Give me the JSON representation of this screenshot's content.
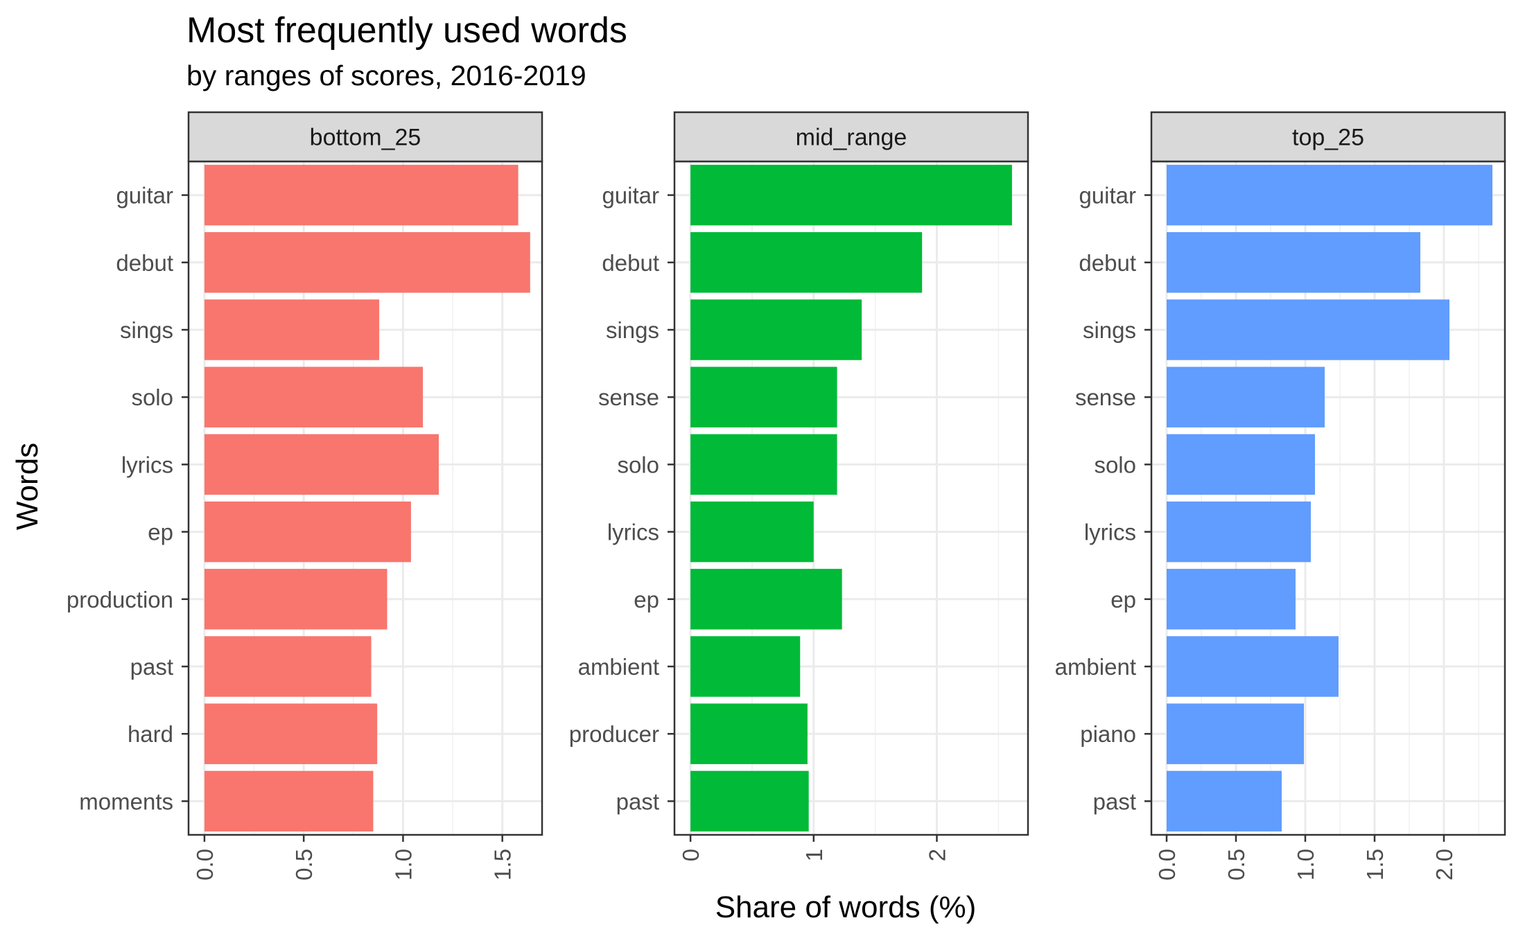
{
  "chart_data": {
    "type": "bar",
    "orientation": "horizontal",
    "title": "Most frequently used words",
    "subtitle": "by ranges of scores, 2016-2019",
    "xlabel": "Share of words (%)",
    "ylabel": "Words",
    "grid": true,
    "facets": [
      {
        "name": "bottom_25",
        "color": "#F8766D",
        "xlim": [
          -0.08,
          1.7
        ],
        "ticks": [
          0,
          0.5,
          1,
          1.5
        ],
        "tick_labels": [
          "0.0",
          "0.5",
          "1.0",
          "1.5"
        ],
        "categories": [
          "guitar",
          "debut",
          "sings",
          "solo",
          "lyrics",
          "ep",
          "production",
          "past",
          "hard",
          "moments"
        ],
        "values": [
          1.58,
          1.64,
          0.88,
          1.1,
          1.18,
          1.04,
          0.92,
          0.84,
          0.87,
          0.85
        ]
      },
      {
        "name": "mid_range",
        "color": "#00BA38",
        "xlim": [
          -0.13,
          2.74
        ],
        "ticks": [
          0,
          1,
          2
        ],
        "tick_labels": [
          "0",
          "1",
          "2"
        ],
        "categories": [
          "guitar",
          "debut",
          "sings",
          "sense",
          "solo",
          "lyrics",
          "ep",
          "ambient",
          "producer",
          "past"
        ],
        "values": [
          2.61,
          1.88,
          1.39,
          1.19,
          1.19,
          1.0,
          1.23,
          0.89,
          0.95,
          0.96
        ]
      },
      {
        "name": "top_25",
        "color": "#619CFF",
        "xlim": [
          -0.11,
          2.44
        ],
        "ticks": [
          0,
          0.5,
          1,
          1.5,
          2
        ],
        "tick_labels": [
          "0.0",
          "0.5",
          "1.0",
          "1.5",
          "2.0"
        ],
        "categories": [
          "guitar",
          "debut",
          "sings",
          "sense",
          "solo",
          "lyrics",
          "ep",
          "ambient",
          "piano",
          "past"
        ],
        "values": [
          2.35,
          1.83,
          2.04,
          1.14,
          1.07,
          1.04,
          0.93,
          1.24,
          0.99,
          0.83
        ]
      }
    ]
  }
}
